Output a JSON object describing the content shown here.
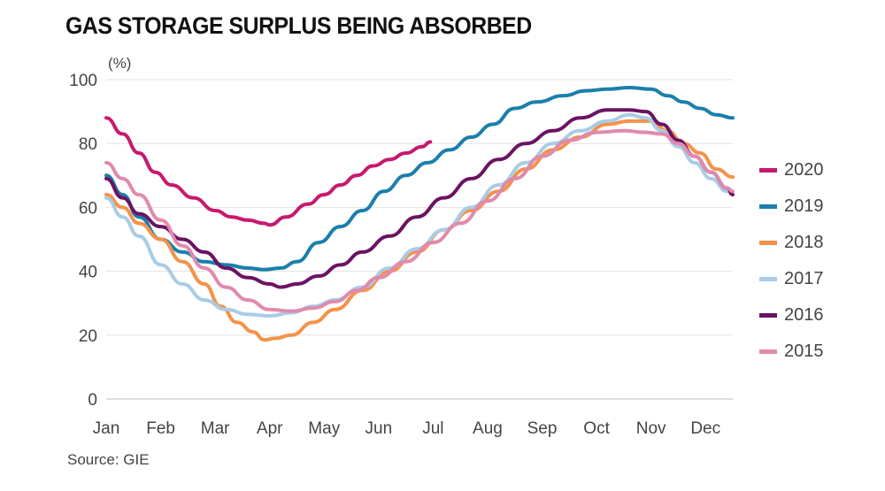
{
  "title": "GAS STORAGE SURPLUS BEING ABSORBED",
  "unit_label": "(%)",
  "source": "Source: GIE",
  "chart_data": {
    "type": "line",
    "title": "GAS STORAGE SURPLUS BEING ABSORBED",
    "xlabel": "",
    "ylabel": "(%)",
    "ylim": [
      0,
      100
    ],
    "yticks": [
      0,
      20,
      40,
      60,
      80,
      100
    ],
    "xlim": [
      0,
      11.5
    ],
    "categories": [
      "Jan",
      "Feb",
      "Mar",
      "Apr",
      "May",
      "Jun",
      "Jul",
      "Aug",
      "Sep",
      "Oct",
      "Nov",
      "Dec"
    ],
    "grid": "horizontal",
    "legend_position": "right",
    "series": [
      {
        "name": "2020",
        "color": "#c8196e",
        "points": [
          [
            0,
            88
          ],
          [
            0.3,
            83
          ],
          [
            0.6,
            77
          ],
          [
            0.9,
            71
          ],
          [
            1.2,
            67
          ],
          [
            1.6,
            63
          ],
          [
            2,
            59
          ],
          [
            2.3,
            57
          ],
          [
            2.6,
            56
          ],
          [
            2.9,
            55
          ],
          [
            3,
            54.5
          ],
          [
            3.3,
            57
          ],
          [
            3.7,
            61
          ],
          [
            4,
            64
          ],
          [
            4.3,
            67
          ],
          [
            4.6,
            70
          ],
          [
            4.9,
            73
          ],
          [
            5.2,
            75
          ],
          [
            5.5,
            77
          ],
          [
            5.8,
            79
          ],
          [
            5.95,
            80.5
          ]
        ]
      },
      {
        "name": "2019",
        "color": "#1a7fab",
        "points": [
          [
            0,
            70
          ],
          [
            0.3,
            64
          ],
          [
            0.6,
            57
          ],
          [
            1,
            50
          ],
          [
            1.4,
            46
          ],
          [
            1.8,
            43
          ],
          [
            2.2,
            42
          ],
          [
            2.6,
            41
          ],
          [
            2.9,
            40.5
          ],
          [
            3.2,
            41
          ],
          [
            3.5,
            43
          ],
          [
            3.9,
            49
          ],
          [
            4.3,
            54
          ],
          [
            4.7,
            59
          ],
          [
            5.1,
            65
          ],
          [
            5.5,
            70
          ],
          [
            5.9,
            74
          ],
          [
            6.3,
            78
          ],
          [
            6.7,
            82
          ],
          [
            7.1,
            86
          ],
          [
            7.5,
            91
          ],
          [
            7.9,
            93
          ],
          [
            8.4,
            95
          ],
          [
            8.8,
            96.5
          ],
          [
            9.2,
            97
          ],
          [
            9.6,
            97.5
          ],
          [
            10,
            97
          ],
          [
            10.3,
            95
          ],
          [
            10.6,
            93
          ],
          [
            10.9,
            91
          ],
          [
            11.2,
            89
          ],
          [
            11.5,
            88
          ]
        ]
      },
      {
        "name": "2018",
        "color": "#f4924a",
        "points": [
          [
            0,
            64
          ],
          [
            0.3,
            60
          ],
          [
            0.6,
            55
          ],
          [
            1,
            50
          ],
          [
            1.4,
            43
          ],
          [
            1.8,
            36
          ],
          [
            2.1,
            29
          ],
          [
            2.4,
            24
          ],
          [
            2.7,
            21
          ],
          [
            2.9,
            18.5
          ],
          [
            3.1,
            19
          ],
          [
            3.4,
            20
          ],
          [
            3.8,
            24
          ],
          [
            4.2,
            28
          ],
          [
            4.7,
            34
          ],
          [
            5.2,
            40
          ],
          [
            5.7,
            46
          ],
          [
            6.2,
            53
          ],
          [
            6.7,
            59
          ],
          [
            7.2,
            65
          ],
          [
            7.7,
            72
          ],
          [
            8.2,
            78
          ],
          [
            8.7,
            82
          ],
          [
            9.2,
            86
          ],
          [
            9.6,
            87
          ],
          [
            10,
            87
          ],
          [
            10.3,
            84
          ],
          [
            10.6,
            80
          ],
          [
            10.9,
            77
          ],
          [
            11.2,
            72
          ],
          [
            11.5,
            69.5
          ]
        ]
      },
      {
        "name": "2017",
        "color": "#a9cce6",
        "points": [
          [
            0,
            63
          ],
          [
            0.3,
            57
          ],
          [
            0.6,
            51
          ],
          [
            1,
            42
          ],
          [
            1.4,
            36
          ],
          [
            1.8,
            31
          ],
          [
            2.2,
            28
          ],
          [
            2.6,
            26.5
          ],
          [
            3,
            26
          ],
          [
            3.4,
            27
          ],
          [
            3.8,
            29
          ],
          [
            4.2,
            31
          ],
          [
            4.7,
            35
          ],
          [
            5.2,
            41
          ],
          [
            5.7,
            47
          ],
          [
            6.2,
            53
          ],
          [
            6.7,
            60
          ],
          [
            7.2,
            67
          ],
          [
            7.7,
            74
          ],
          [
            8.2,
            80
          ],
          [
            8.7,
            84
          ],
          [
            9.2,
            87
          ],
          [
            9.6,
            89
          ],
          [
            9.9,
            88
          ],
          [
            10.2,
            84
          ],
          [
            10.5,
            79
          ],
          [
            10.8,
            74
          ],
          [
            11.1,
            69
          ],
          [
            11.4,
            65
          ],
          [
            11.5,
            64
          ]
        ]
      },
      {
        "name": "2016",
        "color": "#6b1362",
        "points": [
          [
            0,
            69
          ],
          [
            0.3,
            63
          ],
          [
            0.6,
            58
          ],
          [
            1,
            54
          ],
          [
            1.4,
            50
          ],
          [
            1.8,
            46
          ],
          [
            2.2,
            41
          ],
          [
            2.6,
            38
          ],
          [
            3,
            36
          ],
          [
            3.2,
            35
          ],
          [
            3.5,
            36
          ],
          [
            3.9,
            38.5
          ],
          [
            4.3,
            42
          ],
          [
            4.7,
            46
          ],
          [
            5.2,
            51
          ],
          [
            5.7,
            57
          ],
          [
            6.2,
            63
          ],
          [
            6.7,
            69
          ],
          [
            7.2,
            75
          ],
          [
            7.7,
            80
          ],
          [
            8.2,
            84
          ],
          [
            8.7,
            88
          ],
          [
            9.2,
            90.5
          ],
          [
            9.6,
            90.5
          ],
          [
            9.9,
            90
          ],
          [
            10.2,
            86
          ],
          [
            10.5,
            81
          ],
          [
            10.8,
            76
          ],
          [
            11.1,
            71
          ],
          [
            11.4,
            66
          ],
          [
            11.5,
            64
          ]
        ]
      },
      {
        "name": "2015",
        "color": "#e08aad",
        "points": [
          [
            0,
            74
          ],
          [
            0.3,
            69
          ],
          [
            0.6,
            64
          ],
          [
            1,
            56
          ],
          [
            1.4,
            48
          ],
          [
            1.8,
            41
          ],
          [
            2.2,
            35
          ],
          [
            2.6,
            31
          ],
          [
            3,
            28
          ],
          [
            3.4,
            27.5
          ],
          [
            3.8,
            28.5
          ],
          [
            4.2,
            30.5
          ],
          [
            4.6,
            34
          ],
          [
            5,
            38
          ],
          [
            5.5,
            43
          ],
          [
            6,
            49
          ],
          [
            6.5,
            55
          ],
          [
            7,
            62
          ],
          [
            7.5,
            69
          ],
          [
            8,
            76
          ],
          [
            8.5,
            81
          ],
          [
            9,
            83.5
          ],
          [
            9.5,
            84
          ],
          [
            9.9,
            83.5
          ],
          [
            10.2,
            83
          ],
          [
            10.5,
            80
          ],
          [
            10.8,
            76
          ],
          [
            11.1,
            71
          ],
          [
            11.4,
            66
          ],
          [
            11.5,
            65
          ]
        ]
      }
    ]
  }
}
